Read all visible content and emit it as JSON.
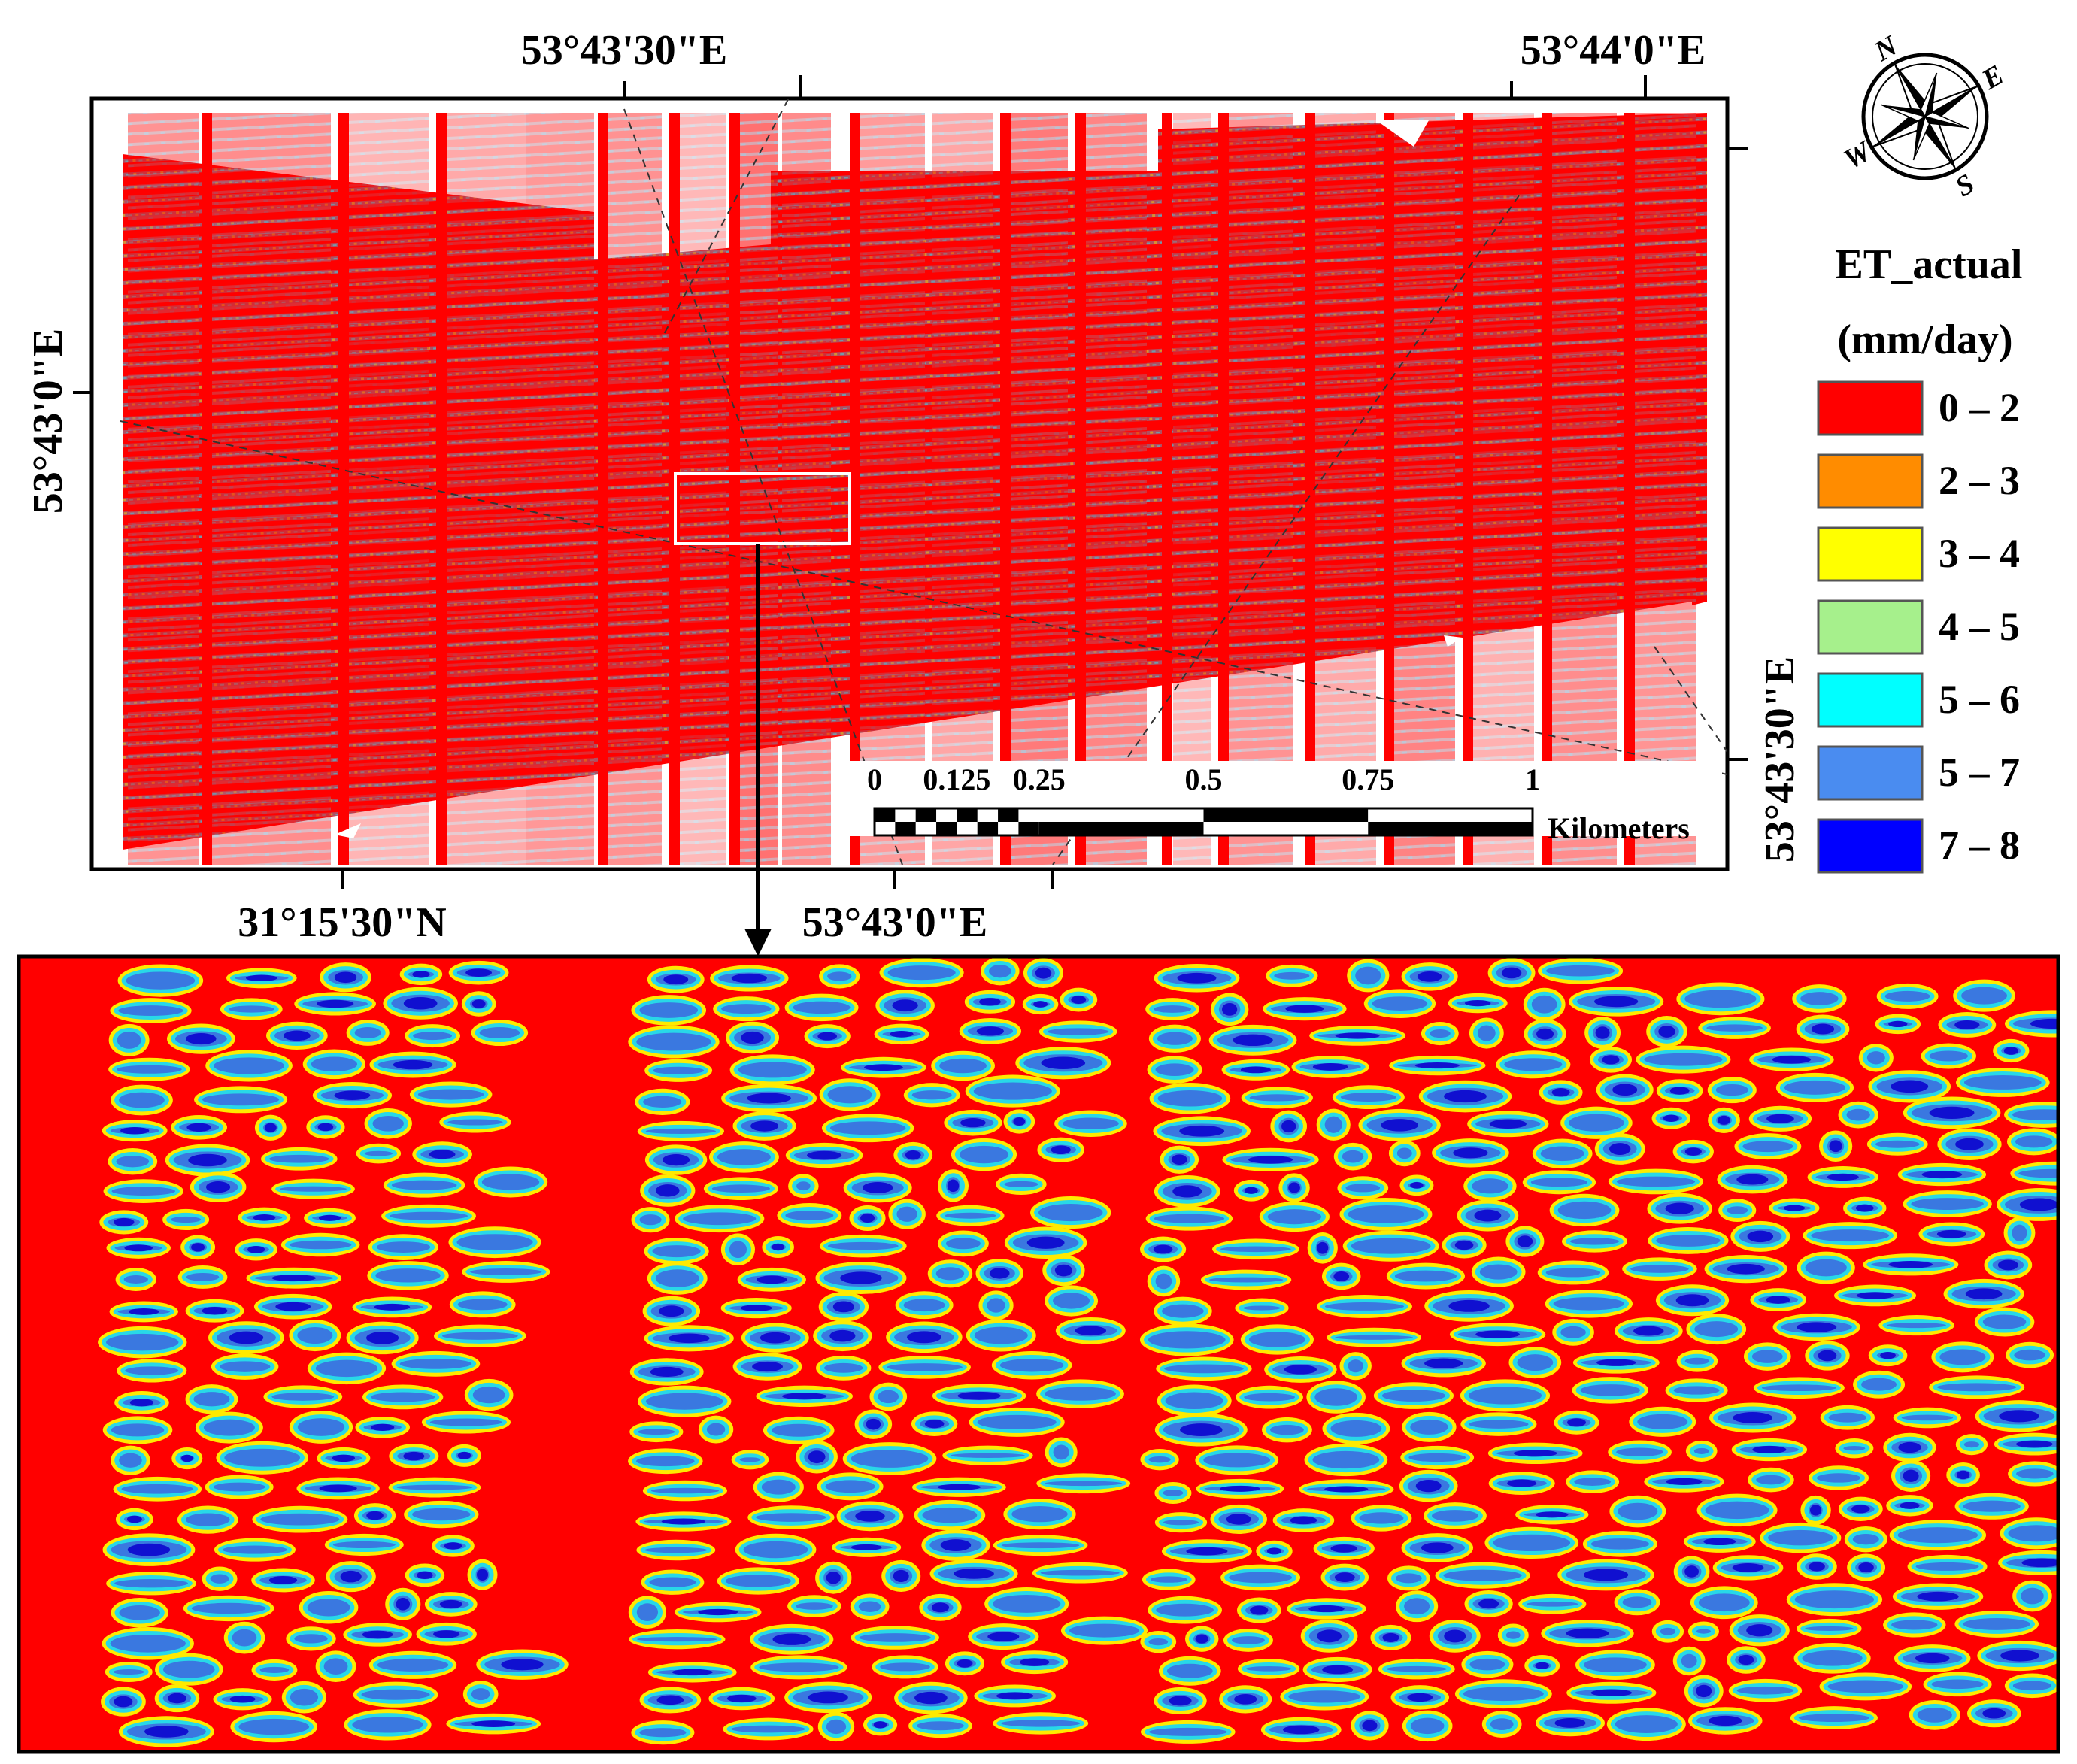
{
  "map": {
    "coordinates": {
      "top_left_lon": "53°43'30\"E",
      "top_right_lon": "53°44'0\"E",
      "left_lat": "53°43'0\"E",
      "right_lat": "53°43'30\"E",
      "bottom_left_lat": "31°15'30\"N",
      "bottom_center_lon": "53°43'0\"E"
    },
    "scale_bar": {
      "ticks": [
        "0",
        "0.125",
        "0.25",
        "0.5",
        "0.75",
        "1"
      ],
      "tick_values": [
        0,
        0.125,
        0.25,
        0.5,
        0.75,
        1
      ],
      "unit": "Kilometers"
    },
    "north_arrow": {
      "letters": [
        "N",
        "E",
        "S",
        "W"
      ]
    }
  },
  "legend": {
    "title_line1": "ET_actual",
    "title_line2": "(mm/day)",
    "items": [
      {
        "label": "0 – 2",
        "color": "#ff0000"
      },
      {
        "label": "2 – 3",
        "color": "#ff8c00"
      },
      {
        "label": "3 – 4",
        "color": "#ffff00"
      },
      {
        "label": "4 – 5",
        "color": "#a6f08c"
      },
      {
        "label": "5 – 6",
        "color": "#00ffff"
      },
      {
        "label": "5 – 7",
        "color": "#4a8cf0"
      },
      {
        "label": "7 – 8",
        "color": "#0000ff"
      }
    ]
  },
  "colors": {
    "background_red": "#ff0000",
    "inset_box": "#ffffff",
    "frame": "#000000"
  }
}
